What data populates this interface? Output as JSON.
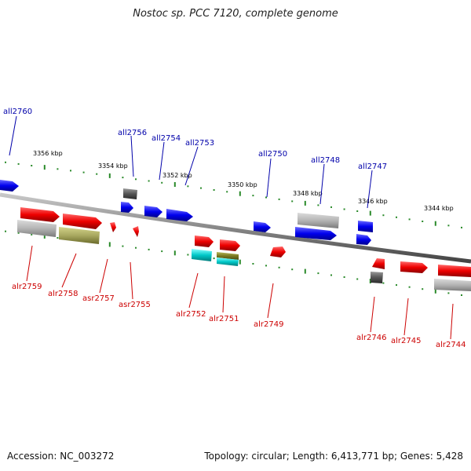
{
  "title": "Nostoc sp. PCC 7120, complete genome",
  "footer": {
    "accession": "Accession: NC_003272",
    "stats": "Topology: circular; Length: 6,413,771 bp; Genes: 5,428"
  },
  "colors": {
    "forward_gene": "#e00000",
    "reverse_gene": "#0000ee",
    "rna_gene": "#00c8c8",
    "pseudo_gene": "#9b9b9b",
    "olive_gene": "#8b8b2a",
    "tick": "#2a8a2a",
    "label_reverse": "#0000aa",
    "label_forward": "#cc0000"
  },
  "kbp_ticks": [
    "3356 kbp",
    "3354 kbp",
    "3352 kbp",
    "3350 kbp",
    "3348 kbp",
    "3346 kbp",
    "3344 kbp"
  ],
  "reverse_genes": [
    "all2760",
    "all2756",
    "all2754",
    "all2753",
    "all2750",
    "all2748",
    "all2747"
  ],
  "forward_genes": [
    "alr2759",
    "alr2758",
    "asr2757",
    "asr2755",
    "alr2752",
    "alr2751",
    "alr2749",
    "alr2746",
    "alr2745",
    "alr2744"
  ]
}
